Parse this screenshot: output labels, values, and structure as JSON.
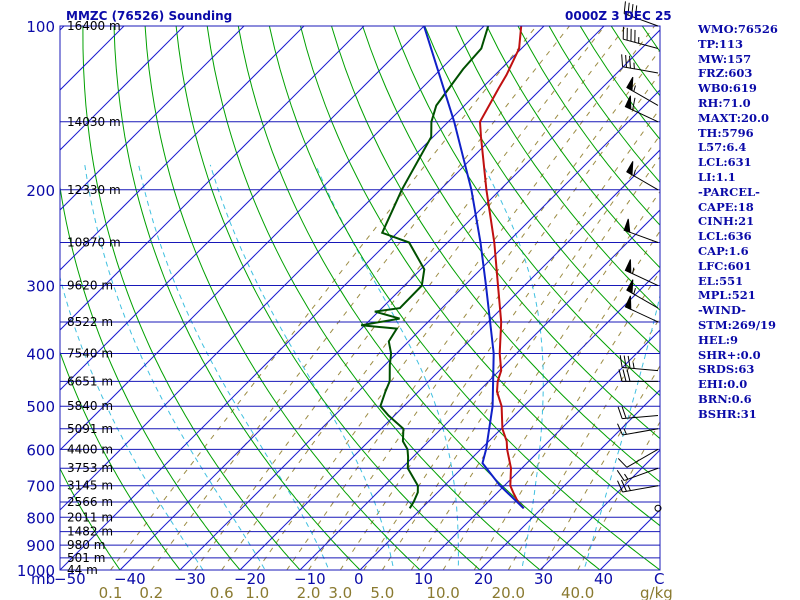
{
  "chart_data": {
    "type": "line",
    "chart_kind": "skew-T log-P sounding",
    "title_left": "MMZC (76526) Sounding",
    "title_right": "0000Z  3 DEC 25",
    "pressure_unit": "mb",
    "temperature_unit": "C",
    "mixing_ratio_unit": "g/kg",
    "ylim_mb": [
      1000,
      100
    ],
    "xlim_c_at_1000mb": [
      -50,
      50
    ],
    "pressure_ticks": [
      100,
      200,
      300,
      400,
      500,
      600,
      700,
      800,
      900,
      1000
    ],
    "temperature_ticks": [
      -50,
      -40,
      -30,
      -20,
      -10,
      0,
      10,
      20,
      30,
      40
    ],
    "mixing_ratio_labels": [
      "0.1",
      "0.2",
      "0.6",
      "1.0",
      "2.0",
      "3.0",
      "5.0",
      "10.0",
      "20.0",
      "40.0"
    ],
    "mixing_ratio_values": [
      0.1,
      0.2,
      0.6,
      1.0,
      2.0,
      3.0,
      5.0,
      10.0,
      20.0,
      40.0
    ],
    "height_levels": [
      {
        "p": 100,
        "label": "16400 m"
      },
      {
        "p": 150,
        "label": "14030 m"
      },
      {
        "p": 200,
        "label": "12330 m"
      },
      {
        "p": 250,
        "label": "10870 m"
      },
      {
        "p": 300,
        "label": "9620 m"
      },
      {
        "p": 350,
        "label": "8522 m"
      },
      {
        "p": 400,
        "label": "7540 m"
      },
      {
        "p": 450,
        "label": "6651 m"
      },
      {
        "p": 500,
        "label": "5840 m"
      },
      {
        "p": 550,
        "label": "5091 m"
      },
      {
        "p": 600,
        "label": "4400 m"
      },
      {
        "p": 650,
        "label": "3753 m"
      },
      {
        "p": 700,
        "label": "3145 m"
      },
      {
        "p": 750,
        "label": "2566 m"
      },
      {
        "p": 800,
        "label": "2011 m"
      },
      {
        "p": 850,
        "label": "1482 m"
      },
      {
        "p": 900,
        "label": "980 m"
      },
      {
        "p": 950,
        "label": "501 m"
      },
      {
        "p": 1000,
        "label": "44 m"
      }
    ],
    "temperature_profile": [
      {
        "p": 770,
        "t": 17.0
      },
      {
        "p": 750,
        "t": 15.0
      },
      {
        "p": 720,
        "t": 12.6
      },
      {
        "p": 700,
        "t": 11.0
      },
      {
        "p": 650,
        "t": 8.2
      },
      {
        "p": 600,
        "t": 4.4
      },
      {
        "p": 580,
        "t": 3.0
      },
      {
        "p": 550,
        "t": 0.2
      },
      {
        "p": 500,
        "t": -3.7
      },
      {
        "p": 470,
        "t": -6.9
      },
      {
        "p": 450,
        "t": -8.5
      },
      {
        "p": 430,
        "t": -9.7
      },
      {
        "p": 400,
        "t": -12.8
      },
      {
        "p": 350,
        "t": -17.8
      },
      {
        "p": 300,
        "t": -24.4
      },
      {
        "p": 250,
        "t": -32.2
      },
      {
        "p": 200,
        "t": -42.3
      },
      {
        "p": 160,
        "t": -52.0
      },
      {
        "p": 150,
        "t": -54.7
      },
      {
        "p": 140,
        "t": -55.9
      },
      {
        "p": 130,
        "t": -57.2
      },
      {
        "p": 123,
        "t": -58.1
      },
      {
        "p": 110,
        "t": -60.4
      },
      {
        "p": 100,
        "t": -63.8
      }
    ],
    "dewpoint_profile": [
      {
        "p": 770,
        "t": -2.0
      },
      {
        "p": 750,
        "t": -2.4
      },
      {
        "p": 720,
        "t": -3.3
      },
      {
        "p": 700,
        "t": -4.4
      },
      {
        "p": 650,
        "t": -9.0
      },
      {
        "p": 620,
        "t": -10.8
      },
      {
        "p": 600,
        "t": -12.2
      },
      {
        "p": 580,
        "t": -14.3
      },
      {
        "p": 550,
        "t": -16.3
      },
      {
        "p": 520,
        "t": -21.0
      },
      {
        "p": 500,
        "t": -23.9
      },
      {
        "p": 470,
        "t": -25.5
      },
      {
        "p": 450,
        "t": -26.5
      },
      {
        "p": 420,
        "t": -29.2
      },
      {
        "p": 400,
        "t": -30.9
      },
      {
        "p": 380,
        "t": -33.3
      },
      {
        "p": 360,
        "t": -34.1
      },
      {
        "p": 355,
        "t": -40.6
      },
      {
        "p": 345,
        "t": -35.3
      },
      {
        "p": 335,
        "t": -40.6
      },
      {
        "p": 330,
        "t": -37.0
      },
      {
        "p": 300,
        "t": -37.1
      },
      {
        "p": 280,
        "t": -39.4
      },
      {
        "p": 250,
        "t": -46.4
      },
      {
        "p": 240,
        "t": -52.5
      },
      {
        "p": 200,
        "t": -56.4
      },
      {
        "p": 160,
        "t": -60.3
      },
      {
        "p": 150,
        "t": -62.8
      },
      {
        "p": 140,
        "t": -64.7
      },
      {
        "p": 120,
        "t": -66.3
      },
      {
        "p": 110,
        "t": -66.7
      },
      {
        "p": 100,
        "t": -69.3
      }
    ],
    "parcel_profile": [
      {
        "p": 770,
        "t": 17.0
      },
      {
        "p": 700,
        "t": 9.3
      },
      {
        "p": 636,
        "t": 2.6
      },
      {
        "p": 600,
        "t": 0.9
      },
      {
        "p": 500,
        "t": -5.2
      },
      {
        "p": 400,
        "t": -13.8
      },
      {
        "p": 300,
        "t": -26.4
      },
      {
        "p": 250,
        "t": -34.5
      },
      {
        "p": 200,
        "t": -44.8
      },
      {
        "p": 150,
        "t": -59.0
      },
      {
        "p": 100,
        "t": -80.0
      }
    ],
    "wind_barbs": [
      {
        "p": 100,
        "dir": 290,
        "kt": 40
      },
      {
        "p": 110,
        "dir": 285,
        "kt": 45
      },
      {
        "p": 122,
        "dir": 280,
        "kt": 35
      },
      {
        "p": 140,
        "dir": 300,
        "kt": 55
      },
      {
        "p": 150,
        "dir": 295,
        "kt": 60
      },
      {
        "p": 200,
        "dir": 300,
        "kt": 55
      },
      {
        "p": 250,
        "dir": 290,
        "kt": 50
      },
      {
        "p": 300,
        "dir": 295,
        "kt": 55
      },
      {
        "p": 330,
        "dir": 300,
        "kt": 55
      },
      {
        "p": 350,
        "dir": 295,
        "kt": 50
      },
      {
        "p": 430,
        "dir": 275,
        "kt": 35
      },
      {
        "p": 450,
        "dir": 270,
        "kt": 30
      },
      {
        "p": 520,
        "dir": 265,
        "kt": 20
      },
      {
        "p": 550,
        "dir": 260,
        "kt": 15
      },
      {
        "p": 600,
        "dir": 240,
        "kt": 10
      },
      {
        "p": 650,
        "dir": 250,
        "kt": 15
      },
      {
        "p": 700,
        "dir": 260,
        "kt": 25
      },
      {
        "p": 770,
        "dir": 0,
        "kt": 0
      }
    ],
    "indices": [
      "WMO:76526",
      "TP:113",
      "MW:157",
      "FRZ:603",
      "WB0:619",
      "RH:71.0",
      "MAXT:20.0",
      "TH:5796",
      "L57:6.4",
      "LCL:631",
      "LI:1.1",
      "-PARCEL-",
      "CAPE:18",
      "CINH:21",
      "LCL:636",
      "CAP:1.6",
      "LFC:601",
      "EL:551",
      "MPL:521",
      "-WIND-",
      "STM:269/19",
      "HEL:9",
      "SHR+:0.0",
      "SRDS:63",
      "EHI:0.0",
      "BRN:0.6",
      "BSHR:31"
    ],
    "colors": {
      "isobar": "#1818b8",
      "isotherm": "#1a1ad0",
      "dry_adiabat": "#00a000",
      "moist_adiabat": "#40c0e0",
      "mixing_ratio": "#9c8c44",
      "temperature": "#c01010",
      "dewpoint": "#005000",
      "parcel": "#1020c8",
      "text": "#0a0aa8",
      "barb": "#000000"
    }
  }
}
